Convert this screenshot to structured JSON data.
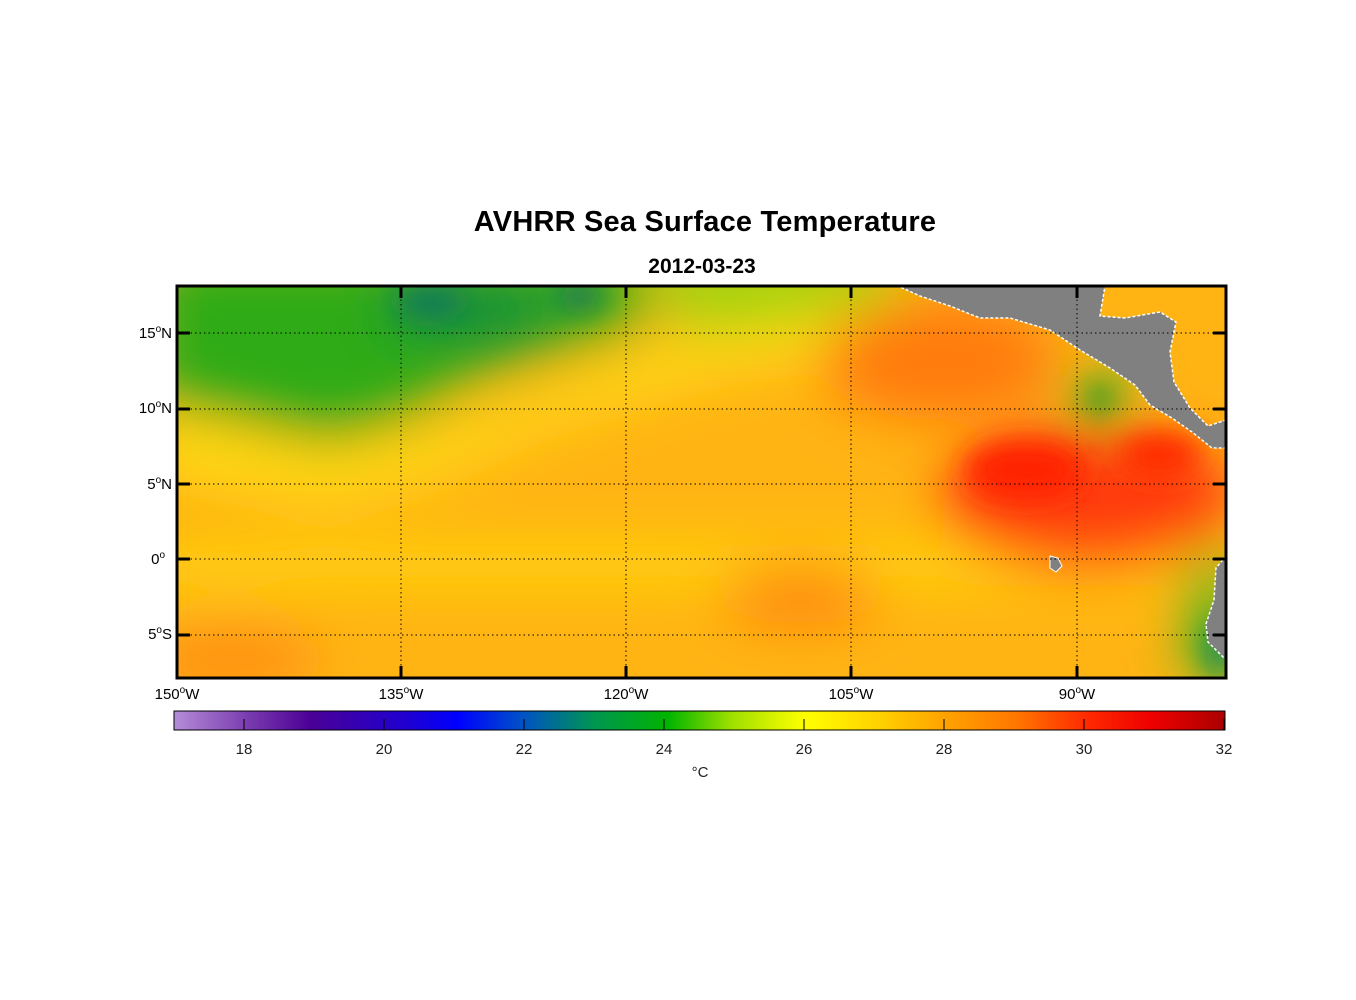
{
  "map": {
    "title": "AVHRR Sea Surface Temperature",
    "subtitle": "2012-03-23",
    "lat_labels": [
      {
        "deg": "15",
        "hemi": "N"
      },
      {
        "deg": "10",
        "hemi": "N"
      },
      {
        "deg": "5",
        "hemi": "N"
      },
      {
        "deg": "0",
        "hemi": ""
      },
      {
        "deg": "5",
        "hemi": "S"
      }
    ],
    "lon_labels": [
      {
        "deg": "150",
        "hemi": "W"
      },
      {
        "deg": "135",
        "hemi": "W"
      },
      {
        "deg": "120",
        "hemi": "W"
      },
      {
        "deg": "105",
        "hemi": "W"
      },
      {
        "deg": "90",
        "hemi": "W"
      }
    ],
    "degree_marker": "o",
    "extent": {
      "lon": [
        -150,
        -80
      ],
      "lat": [
        -8,
        18
      ]
    },
    "land_color": "#808080",
    "colorbar": {
      "range": [
        17,
        32
      ],
      "ticks": [
        "18",
        "20",
        "22",
        "24",
        "26",
        "28",
        "30",
        "32"
      ],
      "unit": "°C",
      "colors": [
        "#b48cd7",
        "#4b0096",
        "#0000ff",
        "#00aa00",
        "#ffff00",
        "#ffa500",
        "#ff0000",
        "#aa0000"
      ]
    }
  }
}
